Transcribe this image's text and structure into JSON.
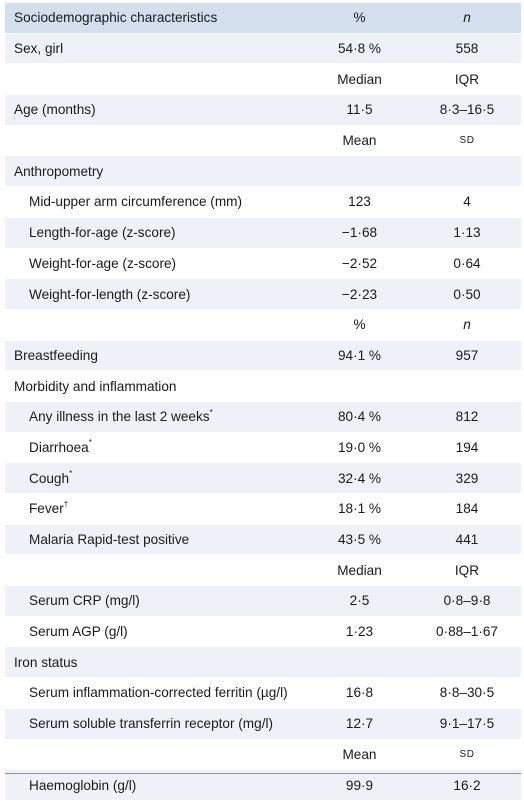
{
  "header": {
    "label": "Sociodemographic characteristics",
    "col2": "%",
    "col3": "n"
  },
  "rows": [
    {
      "label": "Sex, girl",
      "v1": "54·8 %",
      "v2": "558",
      "style": "band",
      "indent": false
    },
    {
      "label": "",
      "v1": "Median",
      "v2": "IQR",
      "style": "white",
      "indent": false
    },
    {
      "label": "Age (months)",
      "v1": "11·5",
      "v2": "8·3–16·5",
      "style": "band",
      "indent": false
    },
    {
      "label": "",
      "v1": "Mean",
      "v2": "SD",
      "style": "white",
      "indent": false
    },
    {
      "label": "Anthropometry",
      "v1": "",
      "v2": "",
      "style": "band",
      "indent": false
    },
    {
      "label": "Mid-upper arm circumference (mm)",
      "v1": "123",
      "v2": "4",
      "style": "white",
      "indent": true
    },
    {
      "label": "Length-for-age (z-score)",
      "v1": "−1·68",
      "v2": "1·13",
      "style": "band",
      "indent": true
    },
    {
      "label": "Weight-for-age (z-score)",
      "v1": "−2·52",
      "v2": "0·64",
      "style": "white",
      "indent": true
    },
    {
      "label": "Weight-for-length (z-score)",
      "v1": "−2·23",
      "v2": "0·50",
      "style": "band",
      "indent": true
    },
    {
      "label": "",
      "v1": "%",
      "v2": "n",
      "style": "white",
      "indent": false
    },
    {
      "label": "Breastfeeding",
      "v1": "94·1 %",
      "v2": "957",
      "style": "band",
      "indent": false
    },
    {
      "label": "Morbidity and inflammation",
      "v1": "",
      "v2": "",
      "style": "white",
      "indent": false
    },
    {
      "label": "Any illness in the last 2 weeks",
      "sup": "*",
      "v1": "80·4 %",
      "v2": "812",
      "style": "band",
      "indent": true
    },
    {
      "label": "Diarrhoea",
      "sup": "*",
      "v1": "19·0 %",
      "v2": "194",
      "style": "white",
      "indent": true
    },
    {
      "label": "Cough",
      "sup": "*",
      "v1": "32·4 %",
      "v2": "329",
      "style": "band",
      "indent": true
    },
    {
      "label": "Fever",
      "sup": "†",
      "v1": "18·1 %",
      "v2": "184",
      "style": "white",
      "indent": true
    },
    {
      "label": "Malaria Rapid-test positive",
      "v1": "43·5 %",
      "v2": "441",
      "style": "band",
      "indent": true
    },
    {
      "label": "",
      "v1": "Median",
      "v2": "IQR",
      "style": "white",
      "indent": false
    },
    {
      "label": "Serum CRP (mg/l)",
      "v1": "2·5",
      "v2": "0·8–9·8",
      "style": "band",
      "indent": true
    },
    {
      "label": "Serum AGP (g/l)",
      "v1": "1·23",
      "v2": "0·88–1·67",
      "style": "white",
      "indent": true
    },
    {
      "label": "Iron status",
      "v1": "",
      "v2": "",
      "style": "band",
      "indent": false
    },
    {
      "label": "Serum inflammation-corrected ferritin (µg/l)",
      "v1": "16·8",
      "v2": "8·8–30·5",
      "style": "white",
      "indent": true
    },
    {
      "label": "Serum soluble transferrin receptor (mg/l)",
      "v1": "12·7",
      "v2": "9·1–17·5",
      "style": "band",
      "indent": true
    },
    {
      "label": "",
      "v1": "Mean",
      "v2": "SD",
      "style": "white",
      "indent": false
    },
    {
      "label": "Haemoglobin (g/l)",
      "v1": "99·9",
      "v2": "16·2",
      "style": "band",
      "indent": true
    }
  ]
}
